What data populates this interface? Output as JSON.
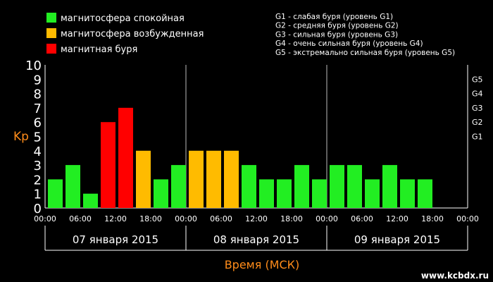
{
  "chart_data": {
    "type": "bar",
    "ylabel": "Kp",
    "xlabel": "Время (МСК)",
    "ylim": [
      0,
      10
    ],
    "y_ticks": [
      "0",
      "1",
      "2",
      "3",
      "4",
      "5",
      "6",
      "7",
      "8",
      "9",
      "10"
    ],
    "x_tick_labels": [
      "00:00",
      "06:00",
      "12:00",
      "18:00",
      "00:00",
      "06:00",
      "12:00",
      "18:00",
      "00:00",
      "06:00",
      "12:00",
      "18:00",
      "00:00"
    ],
    "days": [
      "07 января 2015",
      "08 января 2015",
      "09 января 2015"
    ],
    "slots_per_day": 8,
    "values": [
      2,
      3,
      1,
      6,
      7,
      4,
      2,
      3,
      4,
      4,
      4,
      3,
      2,
      2,
      3,
      2,
      3,
      3,
      2,
      3,
      2,
      2
    ],
    "status": [
      "quiet",
      "quiet",
      "quiet",
      "storm",
      "storm",
      "excited",
      "quiet",
      "quiet",
      "excited",
      "excited",
      "excited",
      "quiet",
      "quiet",
      "quiet",
      "quiet",
      "quiet",
      "quiet",
      "quiet",
      "quiet",
      "quiet",
      "quiet",
      "quiet"
    ],
    "legend": [
      {
        "key": "quiet",
        "label": "магнитосфера спокойная",
        "color": "#22ee22"
      },
      {
        "key": "excited",
        "label": "магнитосфера возбужденная",
        "color": "#ffbb00"
      },
      {
        "key": "storm",
        "label": "магнитная буря",
        "color": "#ff0000"
      }
    ],
    "g_scale": [
      {
        "label": "G5",
        "value": 9
      },
      {
        "label": "G4",
        "value": 8
      },
      {
        "label": "G3",
        "value": 7
      },
      {
        "label": "G2",
        "value": 6
      },
      {
        "label": "G1",
        "value": 5
      }
    ],
    "g_legend": [
      "G1 - слабая буря (уровень G1)",
      "G2 - средняя буря (уровень G2)",
      "G3 - сильная буря (уровень G3)",
      "G4 - очень сильная буря (уровень G4)",
      "G5 - экстремально сильная буря (уровень G5)"
    ],
    "legend_placement": "top-left",
    "grid": false
  },
  "watermark": "www.kcbdx.ru"
}
